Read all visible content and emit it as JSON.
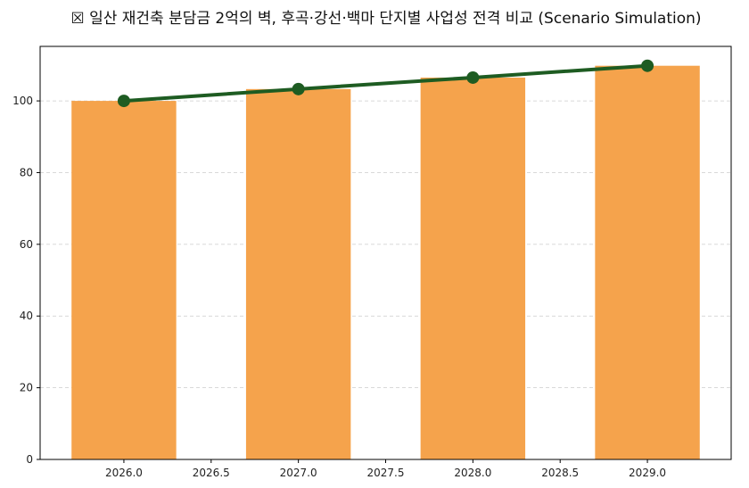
{
  "chart_data": {
    "type": "bar+line",
    "title": "☒ 일산 재건축 분담금 2억의 벽, 후곡·강선·백마 단지별 사업성 전격 비교 (Scenario Simulation)",
    "xlabel": "",
    "ylabel": "",
    "x": [
      2026,
      2027,
      2028,
      2029
    ],
    "series": [
      {
        "name": "bar",
        "type": "bar",
        "values": [
          100,
          103.3,
          106.5,
          109.8
        ],
        "color": "#f5a34c"
      },
      {
        "name": "line",
        "type": "line",
        "values": [
          100,
          103.3,
          106.5,
          109.8
        ],
        "color": "#1e5c22"
      }
    ],
    "xlim": [
      2025.52,
      2029.48
    ],
    "ylim": [
      0,
      115.2
    ],
    "xticks": [
      "2026.0",
      "2026.5",
      "2027.0",
      "2027.5",
      "2028.0",
      "2028.5",
      "2029.0"
    ],
    "yticks": [
      "0",
      "20",
      "40",
      "60",
      "80",
      "100"
    ],
    "grid": "y dashed",
    "bar_width": 0.6
  }
}
